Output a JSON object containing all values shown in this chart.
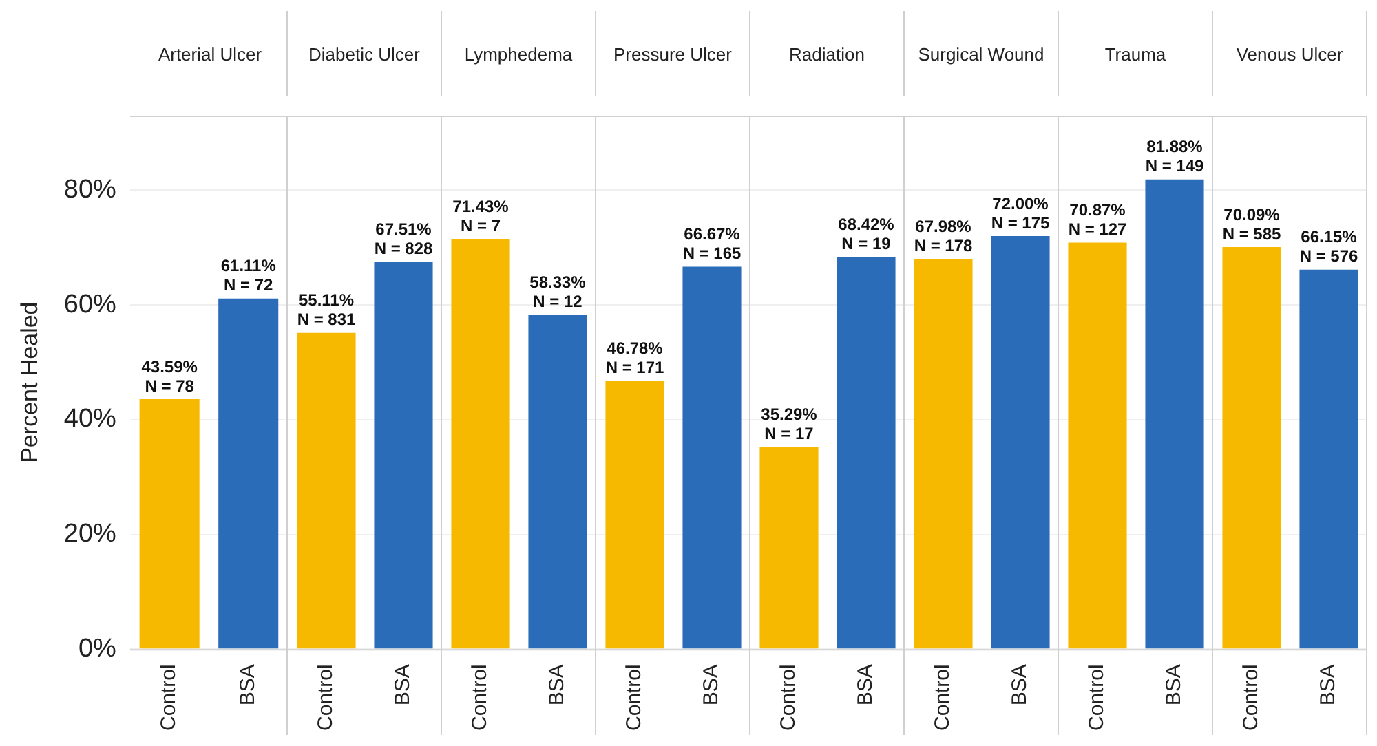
{
  "chart_data": [
    {
      "type": "bar",
      "title": "Arterial Ulcer",
      "ylabel": "Percent Healed",
      "categories": [
        "Control",
        "BSA"
      ],
      "values": [
        43.59,
        61.11
      ],
      "colors": [
        "#f7b900",
        "#2b6cb8"
      ],
      "value_labels": [
        "43.59%\nN = 78",
        "61.11%\nN = 72"
      ],
      "ylim": [
        0,
        93
      ],
      "yticks": [
        {
          "value": 0,
          "label": "0%"
        },
        {
          "value": 20,
          "label": "20%"
        },
        {
          "value": 40,
          "label": "40%"
        },
        {
          "value": 60,
          "label": "60%"
        },
        {
          "value": 80,
          "label": "80%"
        }
      ],
      "grid": "y"
    },
    {
      "type": "bar",
      "title": "Diabetic Ulcer",
      "categories": [
        "Control",
        "BSA"
      ],
      "values": [
        55.11,
        67.51
      ],
      "colors": [
        "#f7b900",
        "#2b6cb8"
      ],
      "value_labels": [
        "55.11%\nN = 831",
        "67.51%\nN = 828"
      ],
      "yticks": [
        0,
        20,
        40,
        60,
        80
      ],
      "grid": "y",
      "tick_labels": "x"
    },
    {
      "type": "bar",
      "title": "Lymphedema",
      "categories": [
        "Control",
        "BSA"
      ],
      "values": [
        71.43,
        58.33
      ],
      "colors": [
        "#f7b900",
        "#2b6cb8"
      ],
      "value_labels": [
        "71.43%\nN = 7",
        "58.33%\nN = 12"
      ],
      "yticks": [
        0,
        20,
        40,
        60,
        80
      ],
      "grid": "y",
      "tick_labels": "x"
    },
    {
      "type": "bar",
      "title": "Pressure Ulcer",
      "categories": [
        "Control",
        "BSA"
      ],
      "values": [
        46.78,
        66.67
      ],
      "colors": [
        "#f7b900",
        "#2b6cb8"
      ],
      "value_labels": [
        "46.78%\nN = 171",
        "66.67%\nN = 165"
      ],
      "yticks": [
        0,
        20,
        40,
        60,
        80
      ],
      "grid": "y",
      "tick_labels": "x"
    },
    {
      "type": "bar",
      "title": "Radiation",
      "categories": [
        "Control",
        "BSA"
      ],
      "values": [
        35.29,
        68.42
      ],
      "colors": [
        "#f7b900",
        "#2b6cb8"
      ],
      "value_labels": [
        "35.29%\nN = 17",
        "68.42%\nN = 19"
      ],
      "yticks": [
        0,
        20,
        40,
        60,
        80
      ],
      "grid": "y",
      "tick_labels": "x"
    },
    {
      "type": "bar",
      "title": "Surgical Wound",
      "categories": [
        "Control",
        "BSA"
      ],
      "values": [
        67.98,
        72.0
      ],
      "colors": [
        "#f7b900",
        "#2b6cb8"
      ],
      "value_labels": [
        "67.98%\nN = 178",
        "72.00%\nN = 175"
      ],
      "yticks": [
        0,
        20,
        40,
        60,
        80
      ],
      "grid": "y",
      "tick_labels": "x"
    },
    {
      "type": "bar",
      "title": "Trauma",
      "categories": [
        "Control",
        "BSA"
      ],
      "values": [
        70.87,
        81.88
      ],
      "colors": [
        "#f7b900",
        "#2b6cb8"
      ],
      "value_labels": [
        "70.87%\nN = 127",
        "81.88%\nN = 149"
      ],
      "yticks": [
        0,
        20,
        40,
        60,
        80
      ],
      "grid": "y",
      "tick_labels": "x"
    },
    {
      "type": "bar",
      "title": "Venous Ulcer",
      "categories": [
        "Control",
        "BSA"
      ],
      "values": [
        70.09,
        66.15
      ],
      "colors": [
        "#f7b900",
        "#2b6cb8"
      ],
      "value_labels": [
        "70.09%\nN = 585",
        "66.15%\nN = 576"
      ],
      "yticks": [
        0,
        20,
        40,
        60,
        80
      ],
      "grid": "y",
      "tick_labels": "x"
    }
  ]
}
